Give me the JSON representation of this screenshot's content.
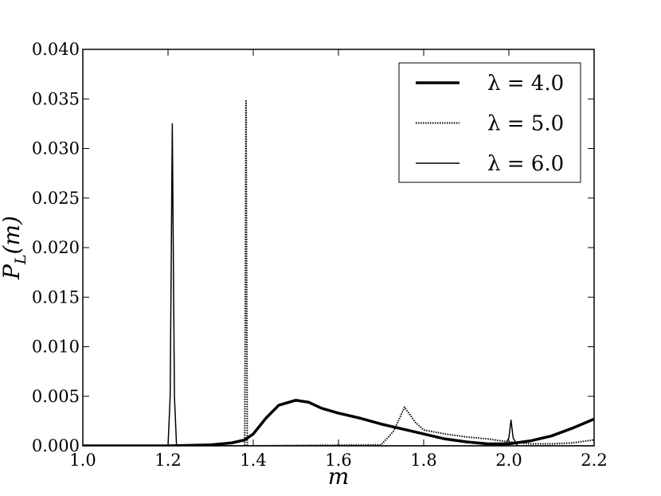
{
  "chart_data": {
    "type": "line",
    "xlabel": "m",
    "ylabel": {
      "base": "P",
      "sub": "L",
      "rest": "(m)"
    },
    "xlim": [
      1.0,
      2.2
    ],
    "ylim": [
      0.0,
      0.04
    ],
    "xticks": [
      {
        "value": 1.0,
        "label": "1.0"
      },
      {
        "value": 1.2,
        "label": "1.2"
      },
      {
        "value": 1.4,
        "label": "1.4"
      },
      {
        "value": 1.6,
        "label": "1.6"
      },
      {
        "value": 1.8,
        "label": "1.8"
      },
      {
        "value": 2.0,
        "label": "2.0"
      },
      {
        "value": 2.2,
        "label": "2.2"
      }
    ],
    "yticks": [
      {
        "value": 0.0,
        "label": "0.000"
      },
      {
        "value": 0.005,
        "label": "0.005"
      },
      {
        "value": 0.01,
        "label": "0.010"
      },
      {
        "value": 0.015,
        "label": "0.015"
      },
      {
        "value": 0.02,
        "label": "0.020"
      },
      {
        "value": 0.025,
        "label": "0.025"
      },
      {
        "value": 0.03,
        "label": "0.030"
      },
      {
        "value": 0.035,
        "label": "0.035"
      },
      {
        "value": 0.04,
        "label": "0.040"
      }
    ],
    "legend": "upper right",
    "series": [
      {
        "name": "λ = 4.0",
        "color": "#000000",
        "linestyle": "solid",
        "linewidth": 3.5,
        "x": [
          1.0,
          1.2,
          1.3,
          1.35,
          1.38,
          1.4,
          1.43,
          1.46,
          1.5,
          1.53,
          1.56,
          1.6,
          1.65,
          1.7,
          1.75,
          1.8,
          1.85,
          1.9,
          1.95,
          2.0,
          2.05,
          2.1,
          2.15,
          2.2
        ],
        "values": [
          0,
          0,
          0.0001,
          0.0003,
          0.0006,
          0.0012,
          0.0028,
          0.0041,
          0.0046,
          0.0044,
          0.0038,
          0.0033,
          0.0028,
          0.0022,
          0.0017,
          0.0012,
          0.0007,
          0.0004,
          0.0002,
          0.0002,
          0.0005,
          0.001,
          0.0018,
          0.0027
        ]
      },
      {
        "name": "λ = 5.0",
        "color": "#000000",
        "linestyle": "dotted",
        "linewidth": 2,
        "x": [
          1.0,
          1.38,
          1.383,
          1.386,
          1.39,
          1.7,
          1.73,
          1.755,
          1.78,
          1.8,
          1.85,
          1.9,
          1.95,
          2.0,
          2.05,
          2.1,
          2.15,
          2.2
        ],
        "values": [
          0,
          0,
          0.0348,
          0,
          0,
          0.0001,
          0.0015,
          0.0039,
          0.0024,
          0.0016,
          0.0012,
          0.0009,
          0.0007,
          0.0004,
          0.0002,
          0.0002,
          0.0003,
          0.0006
        ]
      },
      {
        "name": "λ = 6.0",
        "color": "#000000",
        "linestyle": "solid",
        "linewidth": 1.5,
        "x": [
          1.0,
          1.2,
          1.205,
          1.21,
          1.215,
          1.22,
          1.25,
          1.99,
          2.0,
          2.005,
          2.01,
          2.02,
          2.2
        ],
        "values": [
          0,
          0,
          0.005,
          0.0325,
          0.005,
          0,
          0,
          0,
          0.0008,
          0.0026,
          0.0008,
          0,
          0
        ]
      }
    ]
  }
}
